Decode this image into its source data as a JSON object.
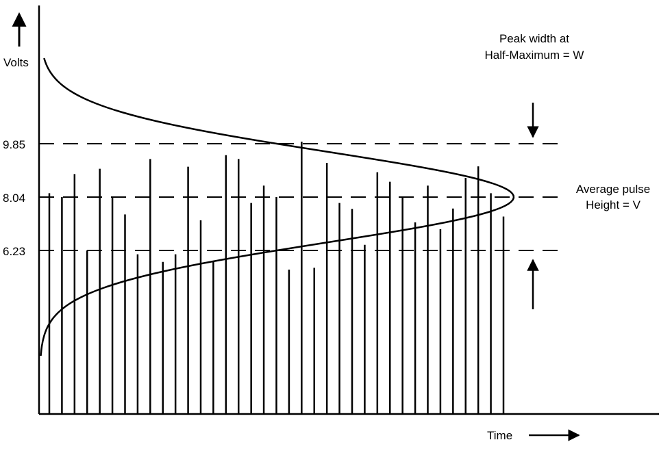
{
  "diagram": {
    "y_axis_label": "Volts",
    "x_axis_label": "Time",
    "ticks": {
      "upper": "9.85",
      "mean": "8.04",
      "lower": "6.23"
    },
    "annotation_width": {
      "line1": "Peak width at",
      "line2": "Half-Maximum = W"
    },
    "annotation_height": {
      "line1": "Average pulse",
      "line2": "Height = V"
    },
    "pulse_heights": [
      8.17,
      8.04,
      8.82,
      6.23,
      9.0,
      8.04,
      7.45,
      6.1,
      9.33,
      5.84,
      6.1,
      9.07,
      7.25,
      5.84,
      9.46,
      9.33,
      7.84,
      8.43,
      8.04,
      5.58,
      9.92,
      5.64,
      9.2,
      7.84,
      7.64,
      6.42,
      8.88,
      8.56,
      8.04,
      7.18,
      8.43,
      6.95,
      7.65,
      8.69,
      9.08,
      8.17,
      7.38
    ],
    "distribution": {
      "mean": 8.04,
      "half_max_lower": 6.23,
      "half_max_upper": 9.85
    }
  }
}
